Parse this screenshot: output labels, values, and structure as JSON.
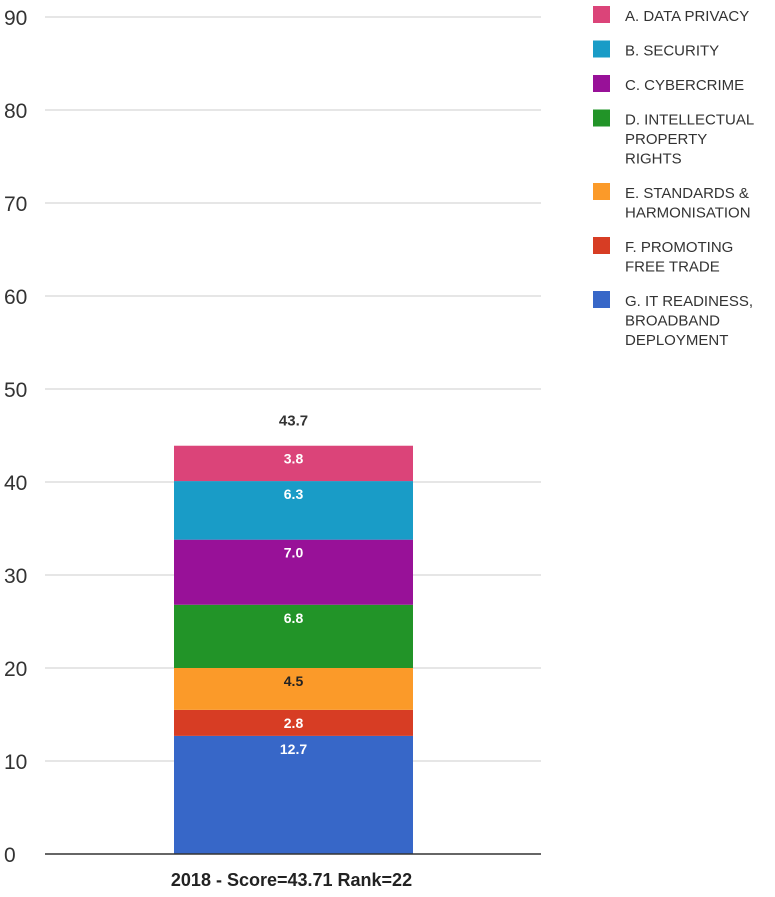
{
  "chart_data": {
    "type": "bar",
    "stacked": true,
    "categories": [
      "2018 - Score=43.71 Rank=22"
    ],
    "series": [
      {
        "name": "G. IT READINESS, BROADBAND DEPLOYMENT",
        "values": [
          12.7
        ],
        "label": "12.7",
        "color": "#3767c8",
        "label_color": "#ffffff"
      },
      {
        "name": "F. PROMOTING FREE TRADE",
        "values": [
          2.8
        ],
        "label": "2.8",
        "color": "#d73d24",
        "label_color": "#ffffff"
      },
      {
        "name": "E. STANDARDS & HARMONISATION",
        "values": [
          4.5
        ],
        "label": "4.5",
        "color": "#fb9a29",
        "label_color": "#222222"
      },
      {
        "name": "D. INTELLECTUAL PROPERTY RIGHTS",
        "values": [
          6.8
        ],
        "label": "6.8",
        "color": "#229428",
        "label_color": "#ffffff"
      },
      {
        "name": "C. CYBERCRIME",
        "values": [
          7.0
        ],
        "label": "7.0",
        "color": "#981198",
        "label_color": "#ffffff"
      },
      {
        "name": "B. SECURITY",
        "values": [
          6.3
        ],
        "label": "6.3",
        "color": "#199cc7",
        "label_color": "#ffffff"
      },
      {
        "name": "A. DATA PRIVACY",
        "values": [
          3.8
        ],
        "label": "3.8",
        "color": "#db4479",
        "label_color": "#ffffff"
      }
    ],
    "total": 43.71,
    "total_label": "43.7",
    "ylim": [
      0,
      90
    ],
    "yticks": [
      0,
      10,
      20,
      30,
      40,
      50,
      60,
      70,
      80,
      90
    ],
    "grid": true,
    "legend_position": "right",
    "legend_order": [
      {
        "lines": [
          "A. DATA PRIVACY"
        ],
        "color": "#db4479"
      },
      {
        "lines": [
          "B. SECURITY"
        ],
        "color": "#199cc7"
      },
      {
        "lines": [
          "C. CYBERCRIME"
        ],
        "color": "#981198"
      },
      {
        "lines": [
          "D. INTELLECTUAL",
          "PROPERTY",
          "RIGHTS"
        ],
        "color": "#229428"
      },
      {
        "lines": [
          "E. STANDARDS &",
          "HARMONISATION"
        ],
        "color": "#fb9a29"
      },
      {
        "lines": [
          "F. PROMOTING",
          "FREE TRADE"
        ],
        "color": "#d73d24"
      },
      {
        "lines": [
          "G. IT READINESS,",
          "BROADBAND",
          "DEPLOYMENT"
        ],
        "color": "#3767c8"
      }
    ]
  }
}
